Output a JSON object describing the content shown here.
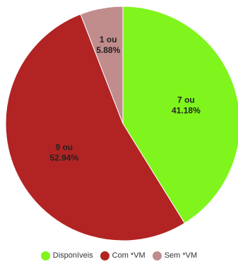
{
  "chart_data": {
    "type": "pie",
    "categories": [
      "Disponíveis",
      "Com *VM",
      "Sem *VM"
    ],
    "values": [
      7,
      9,
      1
    ],
    "percentages": [
      "41.18%",
      "52.94%",
      "5.88%"
    ],
    "slice_labels": [
      {
        "line1": "7 ou",
        "line2": "41.18%"
      },
      {
        "line1": "9 ou",
        "line2": "52.94%"
      },
      {
        "line1": "1 ou",
        "line2": "5.88%"
      }
    ],
    "colors": [
      "#7ff51d",
      "#b22424",
      "#c08c8c"
    ],
    "legend": [
      {
        "label": "Disponíveis",
        "color": "#7ff51d"
      },
      {
        "label": "Com *VM",
        "color": "#b22424"
      },
      {
        "label": "Sem *VM",
        "color": "#c08c8c"
      }
    ],
    "legend_position": "bottom",
    "start_angle": "top",
    "direction": "clockwise"
  }
}
